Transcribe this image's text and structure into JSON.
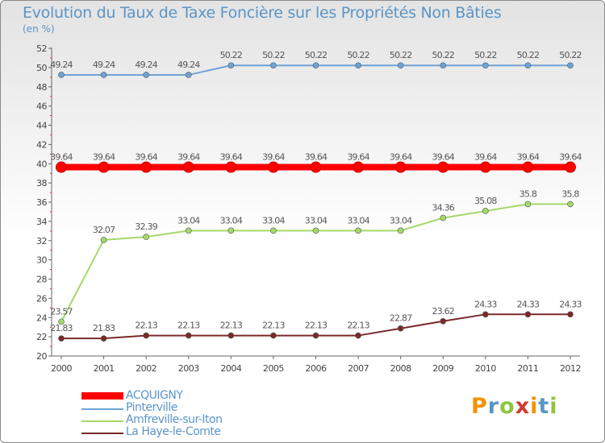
{
  "header": {
    "title": "Evolution du Taux de Taxe Foncière sur les Propriétés Non Bâties",
    "unit": "(en %)"
  },
  "brand": {
    "letters": [
      "P",
      "r",
      "o",
      "x",
      "i",
      "t",
      "i"
    ],
    "colors": [
      "#f39200",
      "#5b95c7",
      "#8dc63f",
      "#d13a2e",
      "#f39200",
      "#5b95c7",
      "#8dc63f"
    ]
  },
  "chart_data": {
    "type": "line",
    "title": "Evolution du Taux de Taxe Foncière sur les Propriétés Non Bâties",
    "ylabel": "(en %)",
    "xlabel": "",
    "x": [
      "2000",
      "2001",
      "2002",
      "2003",
      "2004",
      "2005",
      "2006",
      "2007",
      "2008",
      "2009",
      "2010",
      "2011",
      "2012"
    ],
    "ylim": [
      20,
      52
    ],
    "yticks": [
      "20",
      "22",
      "24",
      "26",
      "28",
      "30",
      "32",
      "34",
      "36",
      "38",
      "40",
      "42",
      "44",
      "46",
      "48",
      "50",
      "52"
    ],
    "grid": false,
    "legend": "bottom-left",
    "series": [
      {
        "name": "ACQUIGNY",
        "color": "#ff0000",
        "bold": true,
        "values": [
          39.64,
          39.64,
          39.64,
          39.64,
          39.64,
          39.64,
          39.64,
          39.64,
          39.64,
          39.64,
          39.64,
          39.64,
          39.64
        ],
        "labels": [
          "39.64",
          "39.64",
          "39.64",
          "39.64",
          "39.64",
          "39.64",
          "39.64",
          "39.64",
          "39.64",
          "39.64",
          "39.64",
          "39.64",
          "39.64"
        ]
      },
      {
        "name": "Pinterville",
        "color": "#6fa3d6",
        "values": [
          49.24,
          49.24,
          49.24,
          49.24,
          50.22,
          50.22,
          50.22,
          50.22,
          50.22,
          50.22,
          50.22,
          50.22,
          50.22
        ],
        "labels": [
          "49.24",
          "49.24",
          "49.24",
          "49.24",
          "50.22",
          "50.22",
          "50.22",
          "50.22",
          "50.22",
          "50.22",
          "50.22",
          "50.22",
          "50.22"
        ]
      },
      {
        "name": "Amfreville-sur-Iton",
        "color": "#a5d86a",
        "values": [
          23.57,
          32.07,
          32.39,
          33.04,
          33.04,
          33.04,
          33.04,
          33.04,
          33.04,
          34.36,
          35.08,
          35.8,
          35.8
        ],
        "labels": [
          "23.57",
          "32.07",
          "32.39",
          "33.04",
          "33.04",
          "33.04",
          "33.04",
          "33.04",
          "33.04",
          "34.36",
          "35.08",
          "35.8",
          "35.8"
        ]
      },
      {
        "name": "La Haye-le-Comte",
        "color": "#7b2a2a",
        "values": [
          21.83,
          21.83,
          22.13,
          22.13,
          22.13,
          22.13,
          22.13,
          22.13,
          22.87,
          23.62,
          24.33,
          24.33,
          24.33
        ],
        "labels": [
          "21.83",
          "21.83",
          "22.13",
          "22.13",
          "22.13",
          "22.13",
          "22.13",
          "22.13",
          "22.87",
          "23.62",
          "24.33",
          "24.33",
          "24.33"
        ]
      }
    ]
  }
}
